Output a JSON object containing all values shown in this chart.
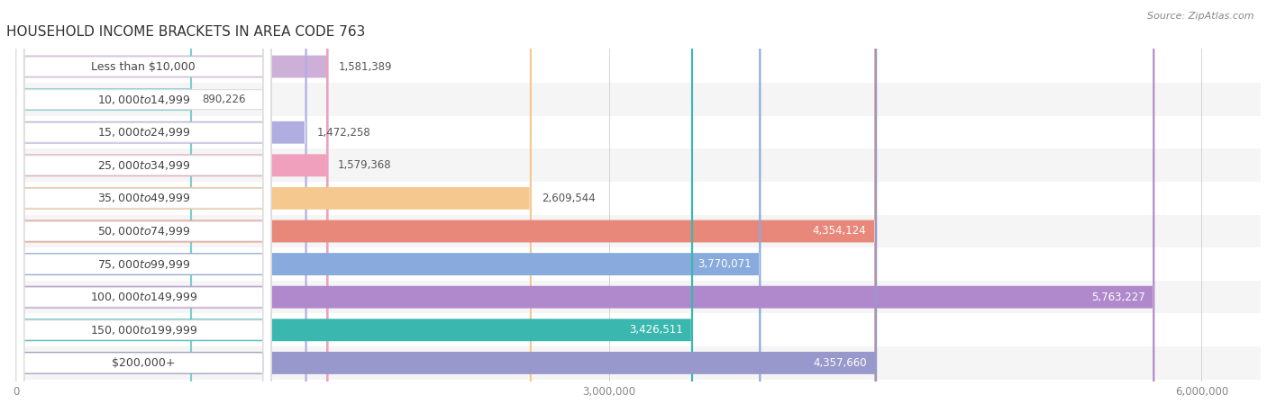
{
  "title": "HOUSEHOLD INCOME BRACKETS IN AREA CODE 763",
  "source": "Source: ZipAtlas.com",
  "categories": [
    "Less than $10,000",
    "$10,000 to $14,999",
    "$15,000 to $24,999",
    "$25,000 to $34,999",
    "$35,000 to $49,999",
    "$50,000 to $74,999",
    "$75,000 to $99,999",
    "$100,000 to $149,999",
    "$150,000 to $199,999",
    "$200,000+"
  ],
  "values": [
    1581389,
    890226,
    1472258,
    1579368,
    2609544,
    4354124,
    3770071,
    5763227,
    3426511,
    4357660
  ],
  "bar_colors": [
    "#cdb0d8",
    "#7ecece",
    "#b0aee0",
    "#f0a0bc",
    "#f5c890",
    "#e8887a",
    "#88aadc",
    "#b088cc",
    "#3ab8b0",
    "#9898cc"
  ],
  "row_bg_colors": [
    "#ffffff",
    "#f5f5f5"
  ],
  "xlim_max": 6300000,
  "data_max": 6000000,
  "xticks": [
    0,
    3000000,
    6000000
  ],
  "xtick_labels": [
    "0",
    "3,000,000",
    "6,000,000"
  ],
  "background_color": "#ffffff",
  "title_fontsize": 11,
  "label_fontsize": 9,
  "value_fontsize": 8.5,
  "value_inside_threshold": 3200000
}
